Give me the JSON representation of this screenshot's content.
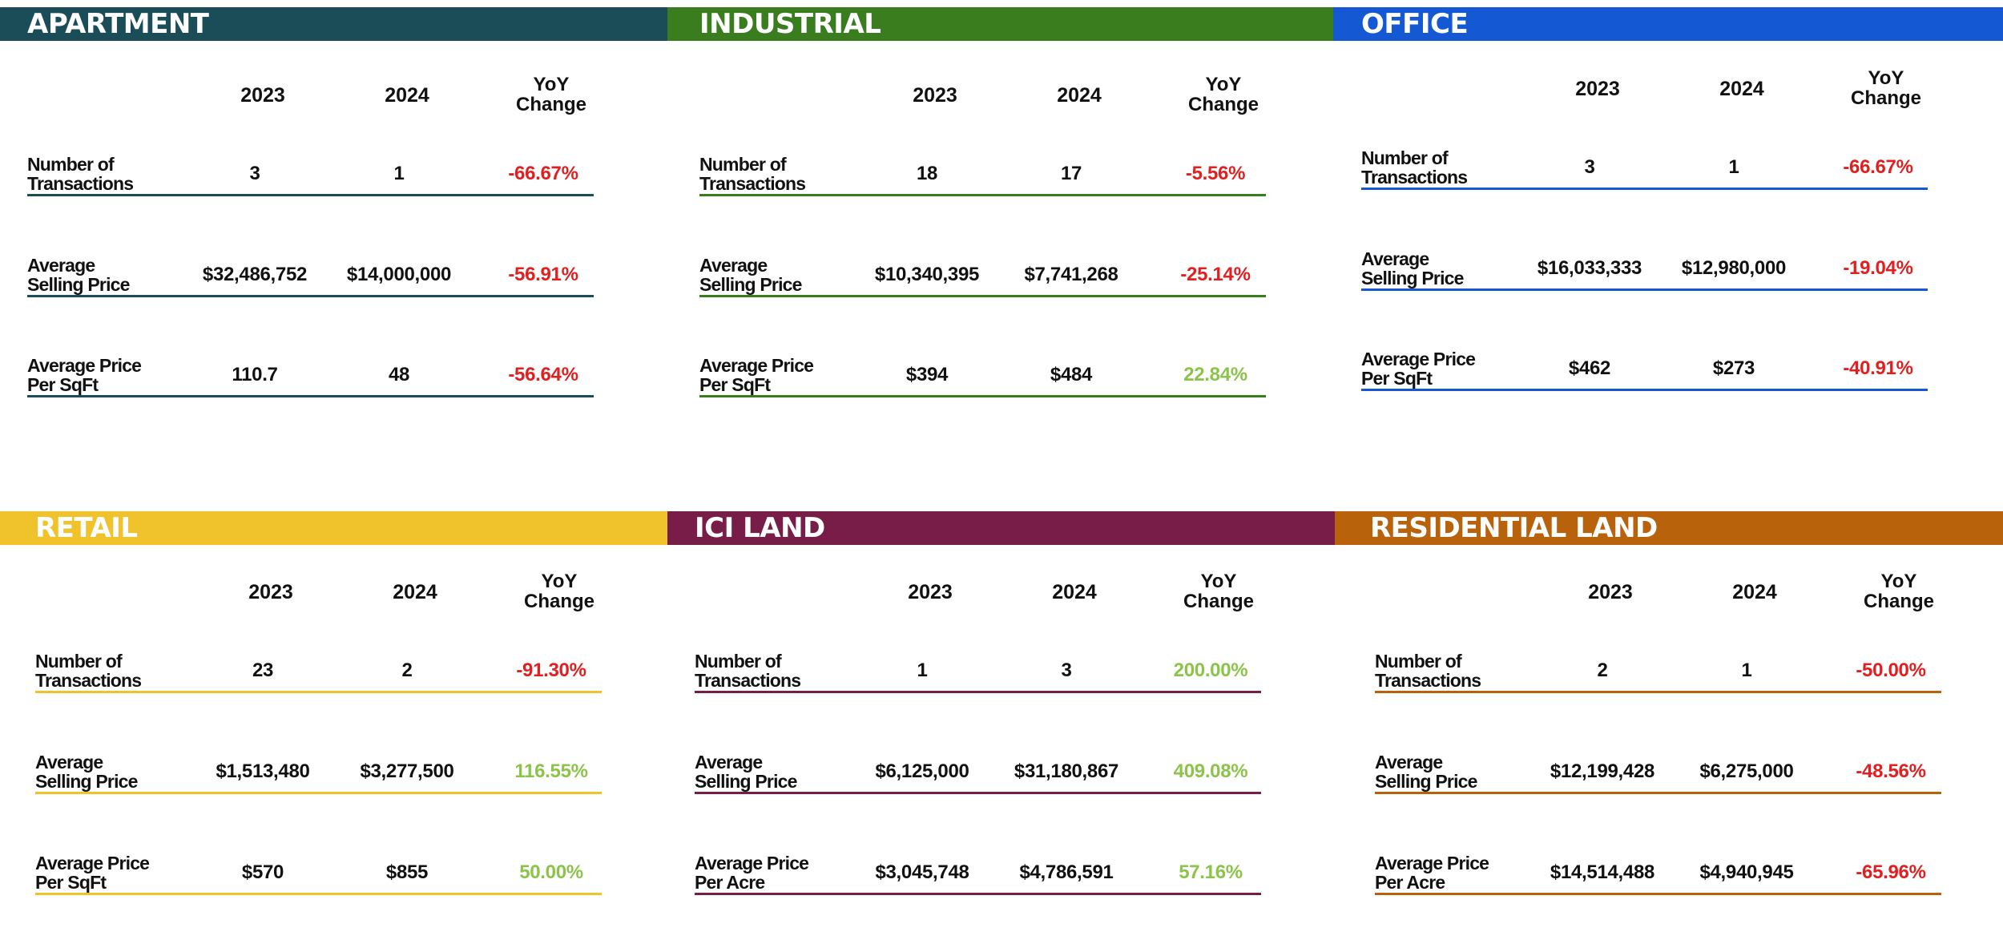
{
  "headers": {
    "y2023": "2023",
    "y2024": "2024",
    "yoy_line1": "YoY",
    "yoy_line2": "Change"
  },
  "panels": [
    {
      "title": "APARTMENT",
      "color": "#1a4d57",
      "rows": [
        {
          "label1": "Number of",
          "label2": "Transactions",
          "v2023": "3",
          "v2024": "1",
          "yoy": "-66.67%",
          "trend": "down"
        },
        {
          "label1": "Average",
          "label2": "Selling Price",
          "v2023": "$32,486,752",
          "v2024": "$14,000,000",
          "yoy": "-56.91%",
          "trend": "down"
        },
        {
          "label1": "Average Price",
          "label2": "Per SqFt",
          "v2023": "110.7",
          "v2024": "48",
          "yoy": "-56.64%",
          "trend": "down"
        }
      ]
    },
    {
      "title": "INDUSTRIAL",
      "color": "#3a7d1e",
      "rows": [
        {
          "label1": "Number of",
          "label2": "Transactions",
          "v2023": "18",
          "v2024": "17",
          "yoy": "-5.56%",
          "trend": "down"
        },
        {
          "label1": "Average",
          "label2": "Selling Price",
          "v2023": "$10,340,395",
          "v2024": "$7,741,268",
          "yoy": "-25.14%",
          "trend": "down"
        },
        {
          "label1": "Average Price",
          "label2": "Per SqFt",
          "v2023": "$394",
          "v2024": "$484",
          "yoy": "22.84%",
          "trend": "up"
        }
      ]
    },
    {
      "title": "OFFICE",
      "color": "#1458d4",
      "rows": [
        {
          "label1": "Number of",
          "label2": "Transactions",
          "v2023": "3",
          "v2024": "1",
          "yoy": "-66.67%",
          "trend": "down"
        },
        {
          "label1": "Average",
          "label2": "Selling Price",
          "v2023": "$16,033,333",
          "v2024": "$12,980,000",
          "yoy": "-19.04%",
          "trend": "down"
        },
        {
          "label1": "Average Price",
          "label2": "Per SqFt",
          "v2023": "$462",
          "v2024": "$273",
          "yoy": "-40.91%",
          "trend": "down"
        }
      ]
    },
    {
      "title": "RETAIL",
      "color": "#f0c22c",
      "rows": [
        {
          "label1": "Number of",
          "label2": "Transactions",
          "v2023": "23",
          "v2024": "2",
          "yoy": "-91.30%",
          "trend": "down"
        },
        {
          "label1": "Average",
          "label2": "Selling Price",
          "v2023": "$1,513,480",
          "v2024": "$3,277,500",
          "yoy": "116.55%",
          "trend": "up"
        },
        {
          "label1": "Average Price",
          "label2": "Per SqFt",
          "v2023": "$570",
          "v2024": "$855",
          "yoy": "50.00%",
          "trend": "up"
        }
      ]
    },
    {
      "title": "ICI LAND",
      "color": "#771d47",
      "rows": [
        {
          "label1": "Number of",
          "label2": "Transactions",
          "v2023": "1",
          "v2024": "3",
          "yoy": "200.00%",
          "trend": "up"
        },
        {
          "label1": "Average",
          "label2": "Selling Price",
          "v2023": "$6,125,000",
          "v2024": "$31,180,867",
          "yoy": "409.08%",
          "trend": "up"
        },
        {
          "label1": "Average Price",
          "label2": "Per Acre",
          "v2023": "$3,045,748",
          "v2024": "$4,786,591",
          "yoy": "57.16%",
          "trend": "up"
        }
      ]
    },
    {
      "title": "RESIDENTIAL LAND",
      "color": "#b8620c",
      "rows": [
        {
          "label1": "Number of",
          "label2": "Transactions",
          "v2023": "2",
          "v2024": "1",
          "yoy": "-50.00%",
          "trend": "down"
        },
        {
          "label1": "Average",
          "label2": "Selling Price",
          "v2023": "$12,199,428",
          "v2024": "$6,275,000",
          "yoy": "-48.56%",
          "trend": "down"
        },
        {
          "label1": "Average Price",
          "label2": "Per Acre",
          "v2023": "$14,514,488",
          "v2024": "$4,940,945",
          "yoy": "-65.96%",
          "trend": "down"
        }
      ]
    }
  ]
}
